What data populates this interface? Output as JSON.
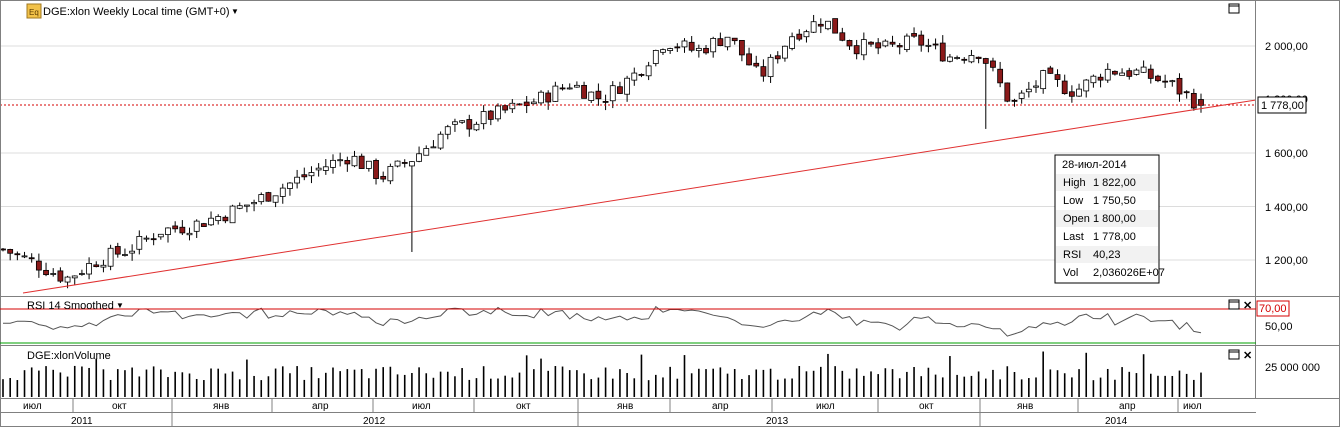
{
  "header": {
    "symbol_badge": "Eq",
    "title": "DGE:xlon Weekly Local time (GMT+0)"
  },
  "last_price_label": "1 778,00",
  "price_axis": [
    "2 000,00",
    "1 800,00",
    "1 600,00",
    "1 400,00",
    "1 200,00"
  ],
  "info_box": {
    "date": "28-июл-2014",
    "rows": [
      {
        "label": "High",
        "value": "1 822,00"
      },
      {
        "label": "Low",
        "value": "1 750,50"
      },
      {
        "label": "Open",
        "value": "1 800,00"
      },
      {
        "label": "Last",
        "value": "1 778,00"
      },
      {
        "label": "RSI",
        "value": "40,23"
      },
      {
        "label": "Vol",
        "value": "2,036026E+07"
      }
    ]
  },
  "rsi_panel": {
    "title": "RSI 14 Smoothed",
    "level_label": "70,00",
    "axis_label": "50,00"
  },
  "volume_panel": {
    "title": "DGE:xlonVolume",
    "axis_label": "25 000 000"
  },
  "time_axis": {
    "months": [
      "июл",
      "окт",
      "янв",
      "апр",
      "июл",
      "окт",
      "янв",
      "апр",
      "июл",
      "окт",
      "янв",
      "апр",
      "июл"
    ],
    "years": [
      "2011",
      "2012",
      "2013",
      "2014"
    ]
  },
  "chart_data": {
    "type": "candlestick",
    "title": "DGE:xlon Weekly Local time (GMT+0)",
    "x_range": [
      "2011-05",
      "2014-07"
    ],
    "ylim": [
      1080,
      2160
    ],
    "close_trend": [
      [
        "2011-05",
        1240
      ],
      [
        "2011-06",
        1190
      ],
      [
        "2011-07",
        1130
      ],
      [
        "2011-08",
        1200
      ],
      [
        "2011-09",
        1240
      ],
      [
        "2011-10",
        1310
      ],
      [
        "2011-11",
        1330
      ],
      [
        "2011-12",
        1370
      ],
      [
        "2012-01",
        1420
      ],
      [
        "2012-02",
        1480
      ],
      [
        "2012-03",
        1540
      ],
      [
        "2012-04",
        1590
      ],
      [
        "2012-05",
        1510
      ],
      [
        "2012-06",
        1580
      ],
      [
        "2012-07",
        1680
      ],
      [
        "2012-08",
        1720
      ],
      [
        "2012-09",
        1760
      ],
      [
        "2012-10",
        1800
      ],
      [
        "2012-11",
        1860
      ],
      [
        "2012-12",
        1800
      ],
      [
        "2013-01",
        1890
      ],
      [
        "2013-02",
        2020
      ],
      [
        "2013-03",
        1980
      ],
      [
        "2013-04",
        2040
      ],
      [
        "2013-05",
        1880
      ],
      [
        "2013-06",
        2040
      ],
      [
        "2013-07",
        2100
      ],
      [
        "2013-08",
        2000
      ],
      [
        "2013-09",
        1990
      ],
      [
        "2013-10",
        2020
      ],
      [
        "2013-11",
        1960
      ],
      [
        "2013-12",
        1980
      ],
      [
        "2014-01",
        1780
      ],
      [
        "2014-02",
        1880
      ],
      [
        "2014-03",
        1830
      ],
      [
        "2014-04",
        1910
      ],
      [
        "2014-05",
        1900
      ],
      [
        "2014-06",
        1860
      ],
      [
        "2014-07",
        1778
      ]
    ],
    "last_bar": {
      "date": "28-июл-2014",
      "open": 1800,
      "high": 1822,
      "low": 1750.5,
      "close": 1778
    },
    "horizontal_line": 1778,
    "trendline": [
      [
        "2011-07",
        1100
      ],
      [
        "2014-07",
        1778
      ]
    ],
    "rsi": {
      "name": "RSI 14 Smoothed",
      "level": 70,
      "last": 40.23
    },
    "volume": {
      "name": "DGE:xlonVolume",
      "last": 20360260
    }
  }
}
